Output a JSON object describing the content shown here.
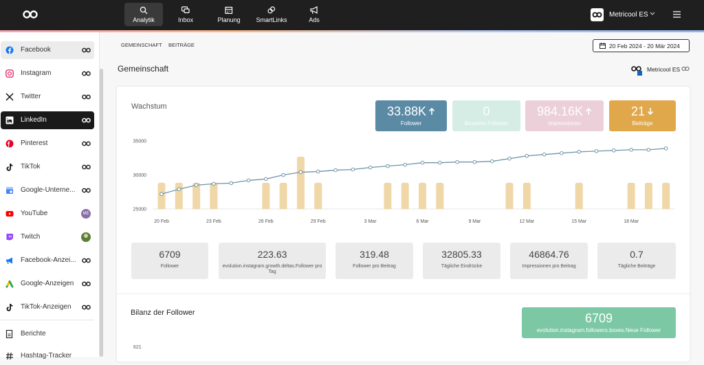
{
  "topbar": {
    "nav": [
      "Analytik",
      "Inbox",
      "Planung",
      "SmartLinks",
      "Ads"
    ],
    "account": "Metricool ES"
  },
  "sidebar": {
    "items": [
      {
        "label": "Facebook"
      },
      {
        "label": "Instagram"
      },
      {
        "label": "Twitter"
      },
      {
        "label": "LinkedIn"
      },
      {
        "label": "Pinterest"
      },
      {
        "label": "TikTok"
      },
      {
        "label": "Google-Unterne..."
      },
      {
        "label": "YouTube",
        "badge": "ME"
      },
      {
        "label": "Twitch"
      },
      {
        "label": "Facebook-Anzei..."
      },
      {
        "label": "Google-Anzeigen"
      },
      {
        "label": "TikTok-Anzeigen"
      }
    ],
    "footer": [
      "Berichte",
      "Hashtag-Tracker"
    ]
  },
  "breadcrumbs": [
    "GEMEINSCHAFT",
    "BEITRÄGE"
  ],
  "date_range": "20 Feb 2024 - 20 Mär 2024",
  "section": {
    "title": "Gemeinschaft",
    "account": "Metricool ES"
  },
  "growth": {
    "title": "Wachstum",
    "kpis": [
      {
        "value": "33.88K",
        "label": "Follower",
        "trend": "up",
        "color": "#5b8aa5"
      },
      {
        "value": "0",
        "label": "Bezahlte Follower",
        "color": "#d5ede5"
      },
      {
        "value": "984.16K",
        "label": "Impressionen",
        "trend": "up",
        "color": "#ecd0d9"
      },
      {
        "value": "21",
        "label": "Beiträge",
        "trend": "down",
        "color": "#e0a84a"
      }
    ],
    "stats": [
      {
        "value": "6709",
        "label": "Follower"
      },
      {
        "value": "223.63",
        "label": "evolution.instagram.growth.deltas.Follower pro Tag"
      },
      {
        "value": "319.48",
        "label": "Follower pro Beitrag"
      },
      {
        "value": "32805.33",
        "label": "Tägliche Eindrücke"
      },
      {
        "value": "46864.76",
        "label": "Impressionen pro Beitrag"
      },
      {
        "value": "0.7",
        "label": "Tägliche Beiträge"
      }
    ]
  },
  "chart_data": {
    "type": "combo",
    "categories": [
      "20 Feb",
      null,
      null,
      "23 Feb",
      null,
      null,
      "26 Feb",
      null,
      null,
      "29 Feb",
      null,
      null,
      "3 Mar",
      null,
      null,
      "6 Mar",
      null,
      null,
      "9 Mar",
      null,
      null,
      "12 Mar",
      null,
      null,
      "15 Mar",
      null,
      null,
      "18 Mar",
      null,
      null
    ],
    "series": [
      {
        "type": "line",
        "color": "#6f93a8",
        "values": [
          27200,
          27900,
          28500,
          28700,
          28800,
          29200,
          29400,
          30000,
          30400,
          30500,
          30700,
          30800,
          31100,
          31300,
          31500,
          31800,
          31800,
          31900,
          31900,
          32000,
          32400,
          32800,
          33000,
          33200,
          33400,
          33500,
          33600,
          33700,
          33700,
          33900
        ]
      },
      {
        "type": "bar",
        "axis": "y2",
        "color": "#f0d7a8",
        "values": [
          1,
          1,
          1,
          1,
          0,
          0,
          1,
          1,
          2,
          1,
          0,
          0,
          0,
          1,
          1,
          1,
          1,
          0,
          0,
          0,
          1,
          1,
          0,
          0,
          1,
          0,
          0,
          1,
          1,
          1
        ]
      }
    ],
    "ylim": [
      25000,
      35000
    ],
    "yticks": [
      25000,
      30000,
      35000
    ],
    "y2lim": [
      0,
      2.6
    ],
    "grid": false
  },
  "balance": {
    "title": "Bilanz der Follower",
    "box": {
      "value": "6709",
      "label": "evolution.instagram.followers.boxes.Neue Follower",
      "color": "#7cc8a4"
    },
    "yticks": [
      621
    ]
  }
}
